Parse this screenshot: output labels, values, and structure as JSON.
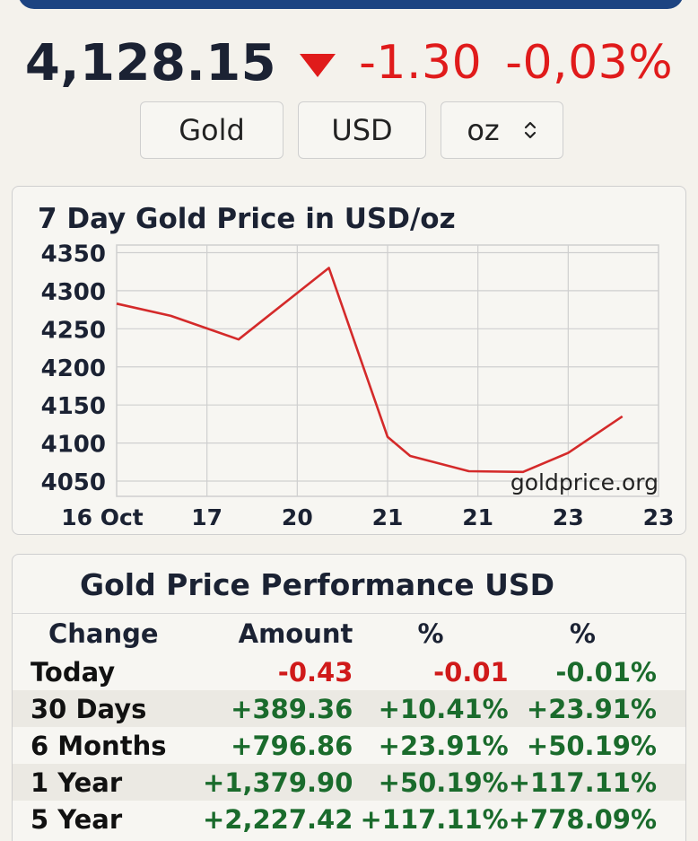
{
  "header": {
    "price": "4,128.15",
    "change": "-1.30",
    "change_pct": "-0,03%",
    "colors": {
      "down": "#e01b1b",
      "bar": "#1d4481"
    }
  },
  "selectors": {
    "metal": "Gold",
    "currency": "USD",
    "unit": "oz"
  },
  "chart": {
    "title": "7 Day Gold Price in USD/oz",
    "watermark": "goldprice.org"
  },
  "chart_data": {
    "type": "line",
    "title": "7 Day Gold Price in USD/oz",
    "x_tick_labels": [
      "16 Oct",
      "17",
      "20",
      "21",
      "21",
      "23",
      "23"
    ],
    "y_ticks": [
      4050,
      4100,
      4150,
      4200,
      4250,
      4300,
      4350
    ],
    "ylim": [
      4030,
      4360
    ],
    "grid": true,
    "series": [
      {
        "color": "#d42a2a",
        "points": [
          [
            0.0,
            4283
          ],
          [
            0.6,
            4267
          ],
          [
            1.35,
            4236
          ],
          [
            2.35,
            4330
          ],
          [
            3.0,
            4108
          ],
          [
            3.25,
            4083
          ],
          [
            3.9,
            4063
          ],
          [
            4.5,
            4062
          ],
          [
            5.0,
            4087
          ],
          [
            5.6,
            4135
          ]
        ]
      }
    ]
  },
  "performance": {
    "title": "Gold Price Performance USD",
    "headers": [
      "Change",
      "Amount",
      "%",
      "%"
    ],
    "rows": [
      {
        "label": "Today",
        "amount": "-0.43",
        "pct1": "-0.01",
        "pct2": "-0.01%"
      },
      {
        "label": "30 Days",
        "amount": "+389.36",
        "pct1": "+10.41%",
        "pct2": "+23.91%"
      },
      {
        "label": "6 Months",
        "amount": "+796.86",
        "pct1": "+23.91%",
        "pct2": "+50.19%"
      },
      {
        "label": "1 Year",
        "amount": "+1,379.90",
        "pct1": "+50.19%",
        "pct2": "+117.11%"
      },
      {
        "label": "5 Year",
        "amount": "+2,227.42",
        "pct1": "+117.11%",
        "pct2": "+778.09%"
      }
    ]
  }
}
